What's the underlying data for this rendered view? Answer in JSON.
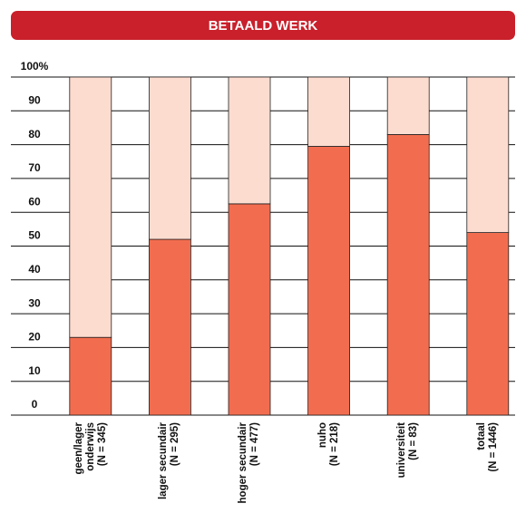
{
  "chart_data": {
    "type": "stacked_bar",
    "title": "BETAALD WERK",
    "categories": [
      "geen/lager\nonderwijs\n(N = 345)",
      "lager secundair\n(N = 295)",
      "hoger secundair\n(N = 477)",
      "nuho\n(N = 218)",
      "universiteit\n(N = 83)",
      "totaal\n(N = 1446)"
    ],
    "series": [
      {
        "color": "#f26d4f",
        "values": [
          23,
          52,
          62.5,
          79.5,
          83,
          54
        ]
      },
      {
        "color": "#fddcd0",
        "values": [
          77,
          48,
          37.5,
          20.5,
          17,
          46
        ]
      }
    ],
    "ylim": [
      0,
      100
    ],
    "yticks": [
      0,
      10,
      20,
      30,
      40,
      50,
      60,
      70,
      80,
      90,
      {
        "value": 100,
        "label": "100%"
      }
    ],
    "grid": true
  }
}
